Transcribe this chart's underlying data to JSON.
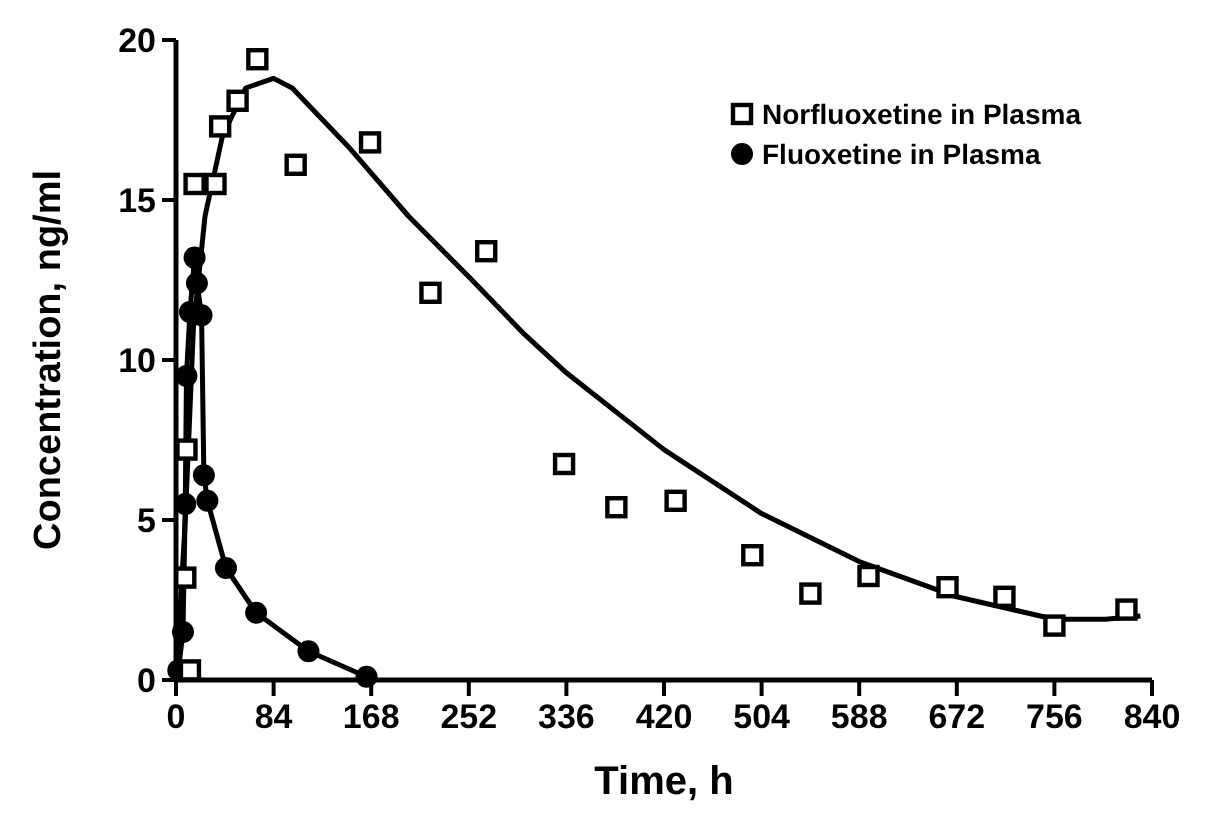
{
  "chart_data": {
    "type": "scatter",
    "xlabel": "Time, h",
    "ylabel": "Concentration, ng/ml",
    "xlim": [
      0,
      840
    ],
    "ylim": [
      0,
      20
    ],
    "xticks": [
      0,
      84,
      168,
      252,
      336,
      420,
      504,
      588,
      672,
      756,
      840
    ],
    "yticks": [
      0,
      5,
      10,
      15,
      20
    ],
    "grid": false,
    "legend": "top right",
    "series": [
      {
        "name": "Norfluoxetine in Plasma",
        "marker": "square",
        "color": "#000000",
        "x": [
          12,
          8,
          9,
          16,
          34,
          38,
          53,
          70,
          103,
          167,
          219,
          267,
          334,
          379,
          430,
          496,
          546,
          596,
          664,
          713,
          756,
          818
        ],
        "values": [
          0.3,
          3.2,
          7.2,
          15.5,
          15.5,
          17.3,
          18.1,
          19.4,
          16.1,
          16.8,
          12.1,
          13.4,
          6.75,
          5.4,
          5.6,
          3.9,
          2.7,
          3.25,
          2.9,
          2.6,
          1.7,
          2.2
        ]
      },
      {
        "name": "Fluoxetine in Plasma",
        "type": "line",
        "marker": "circle",
        "color": "#000000",
        "x": [
          2,
          6,
          8,
          9,
          12,
          16,
          18,
          22,
          24,
          27,
          43,
          69,
          114,
          164
        ],
        "values": [
          0.3,
          1.5,
          5.5,
          9.5,
          11.5,
          13.2,
          12.4,
          11.4,
          6.4,
          5.6,
          3.5,
          2.1,
          0.9,
          0.1
        ]
      },
      {
        "type": "line",
        "marker": "none",
        "color": "#000000",
        "x": [
          0,
          8,
          15,
          25,
          40,
          60,
          84,
          100,
          150,
          200,
          252,
          300,
          336,
          420,
          504,
          588,
          672,
          756,
          800,
          830
        ],
        "values": [
          0,
          5,
          11,
          14.5,
          17,
          18.5,
          18.8,
          18.5,
          16.6,
          14.5,
          12.6,
          10.8,
          9.6,
          7.2,
          5.2,
          3.7,
          2.6,
          1.9,
          1.9,
          2.0
        ]
      }
    ]
  }
}
